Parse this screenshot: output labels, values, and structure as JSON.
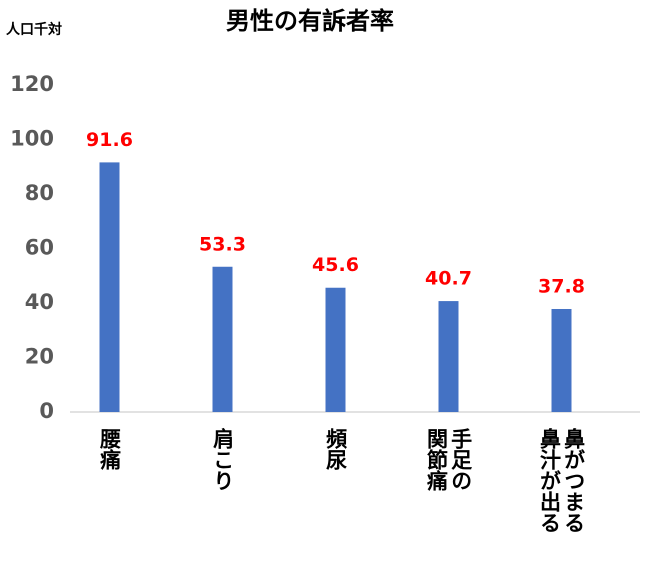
{
  "chart_data": {
    "type": "bar",
    "title": "男性の有訴者率",
    "y_label": "人口千対",
    "categories": [
      "腰痛",
      "肩こり",
      "頻尿",
      "手足の\n関節痛",
      "鼻がつまる\n鼻汁が出る"
    ],
    "values": [
      91.6,
      53.3,
      45.6,
      40.7,
      37.8
    ],
    "color": "#4472c4",
    "value_label_color": "#ff0000",
    "ylim": [
      0,
      120
    ],
    "yticks": [
      0,
      20,
      40,
      60,
      80,
      100,
      120
    ],
    "grid": false
  }
}
